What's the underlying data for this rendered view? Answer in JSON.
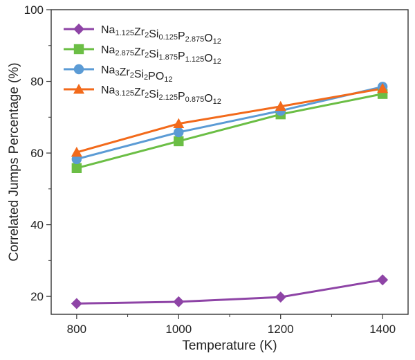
{
  "chart_data": {
    "type": "line",
    "title": "",
    "xlabel": "Temperature (K)",
    "ylabel": "Correlated Jumps Percentage (%)",
    "x": [
      800,
      1000,
      1200,
      1400
    ],
    "xticks": [
      800,
      1000,
      1200,
      1400
    ],
    "yticks": [
      20,
      40,
      60,
      80,
      100
    ],
    "xlim": [
      750,
      1450
    ],
    "ylim": [
      15,
      100
    ],
    "legend_position": "top-left",
    "series": [
      {
        "name": "Na1.125Zr2Si0.125P2.875O12",
        "name_parts": [
          [
            "Na",
            ""
          ],
          [
            "1.125",
            "sub"
          ],
          [
            "Zr",
            ""
          ],
          [
            "2",
            "sub"
          ],
          [
            "Si",
            ""
          ],
          [
            "0.125",
            "sub"
          ],
          [
            "P",
            ""
          ],
          [
            "2.875",
            "sub"
          ],
          [
            "O",
            ""
          ],
          [
            "12",
            "sub"
          ]
        ],
        "marker": "diamond",
        "color": "#8E44A6",
        "values": [
          18.0,
          18.5,
          19.8,
          24.6
        ]
      },
      {
        "name": "Na2.875Zr2Si1.875P1.125O12",
        "name_parts": [
          [
            "Na",
            ""
          ],
          [
            "2.875",
            "sub"
          ],
          [
            "Zr",
            ""
          ],
          [
            "2",
            "sub"
          ],
          [
            "Si",
            ""
          ],
          [
            "1.875",
            "sub"
          ],
          [
            "P",
            ""
          ],
          [
            "1.125",
            "sub"
          ],
          [
            "O",
            ""
          ],
          [
            "12",
            "sub"
          ]
        ],
        "marker": "square",
        "color": "#6BBE45",
        "values": [
          55.8,
          63.3,
          70.8,
          76.5
        ]
      },
      {
        "name": "Na3Zr2Si2PO12",
        "name_parts": [
          [
            "Na",
            ""
          ],
          [
            "3",
            "sub"
          ],
          [
            "Zr",
            ""
          ],
          [
            "2",
            "sub"
          ],
          [
            "Si",
            ""
          ],
          [
            "2",
            "sub"
          ],
          [
            "PO",
            ""
          ],
          [
            "12",
            "sub"
          ]
        ],
        "marker": "circle",
        "color": "#5B9BD5",
        "values": [
          58.3,
          65.8,
          71.8,
          78.5
        ]
      },
      {
        "name": "Na3.125Zr2Si2.125P0.875O12",
        "name_parts": [
          [
            "Na",
            ""
          ],
          [
            "3.125",
            "sub"
          ],
          [
            "Zr",
            ""
          ],
          [
            "2",
            "sub"
          ],
          [
            "Si",
            ""
          ],
          [
            "2.125",
            "sub"
          ],
          [
            "P",
            ""
          ],
          [
            "0.875",
            "sub"
          ],
          [
            "O",
            ""
          ],
          [
            "12",
            "sub"
          ]
        ],
        "marker": "triangle",
        "color": "#F26A1B",
        "values": [
          60.2,
          68.2,
          73.0,
          78.0
        ]
      }
    ]
  }
}
